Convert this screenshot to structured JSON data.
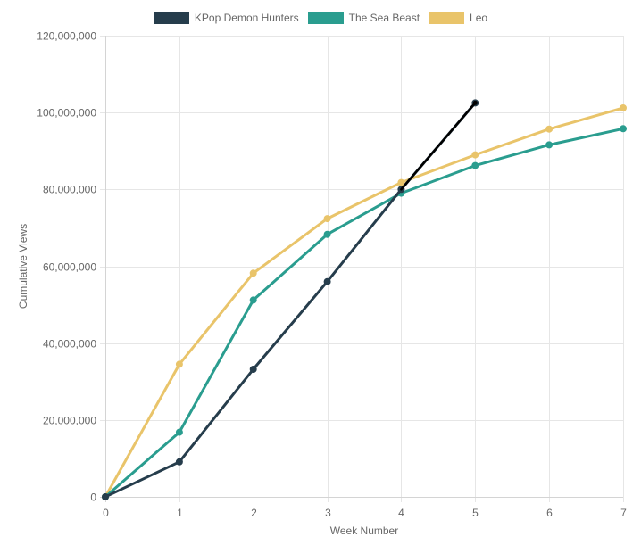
{
  "chart_data": {
    "type": "line",
    "title": "",
    "xlabel": "Week Number",
    "ylabel": "Cumulative Views",
    "x": [
      0,
      1,
      2,
      3,
      4,
      5,
      6,
      7
    ],
    "x_tick_labels": [
      "0",
      "1",
      "2",
      "3",
      "4",
      "5",
      "6",
      "7"
    ],
    "xlim": [
      0,
      7
    ],
    "ylim": [
      0,
      120000000
    ],
    "y_ticks": [
      0,
      20000000,
      40000000,
      60000000,
      80000000,
      100000000,
      120000000
    ],
    "y_tick_labels": [
      "0",
      "20,000,000",
      "40,000,000",
      "60,000,000",
      "80,000,000",
      "100,000,000",
      "120,000,000"
    ],
    "grid": true,
    "legend_position": "top-center",
    "series": [
      {
        "name": "KPop Demon Hunters",
        "color": "#263d4c",
        "x": [
          0,
          1,
          2,
          3,
          4,
          5
        ],
        "values": [
          0,
          9100000,
          33200000,
          56000000,
          80000000,
          102500000
        ]
      },
      {
        "name": "The Sea Beast",
        "color": "#2a9d8f",
        "x": [
          0,
          1,
          2,
          3,
          4,
          5,
          6,
          7
        ],
        "values": [
          0,
          16800000,
          51200000,
          68300000,
          79000000,
          86200000,
          91600000,
          95800000
        ]
      },
      {
        "name": "Leo",
        "color": "#e9c46a",
        "x": [
          0,
          1,
          2,
          3,
          4,
          5,
          6,
          7
        ],
        "values": [
          0,
          34500000,
          58200000,
          72400000,
          81800000,
          89000000,
          95700000,
          101200000
        ]
      }
    ],
    "annotations": [
      {
        "type": "line",
        "color": "#000000",
        "x": [
          4,
          5
        ],
        "values": [
          80000000,
          102500000
        ]
      }
    ]
  }
}
